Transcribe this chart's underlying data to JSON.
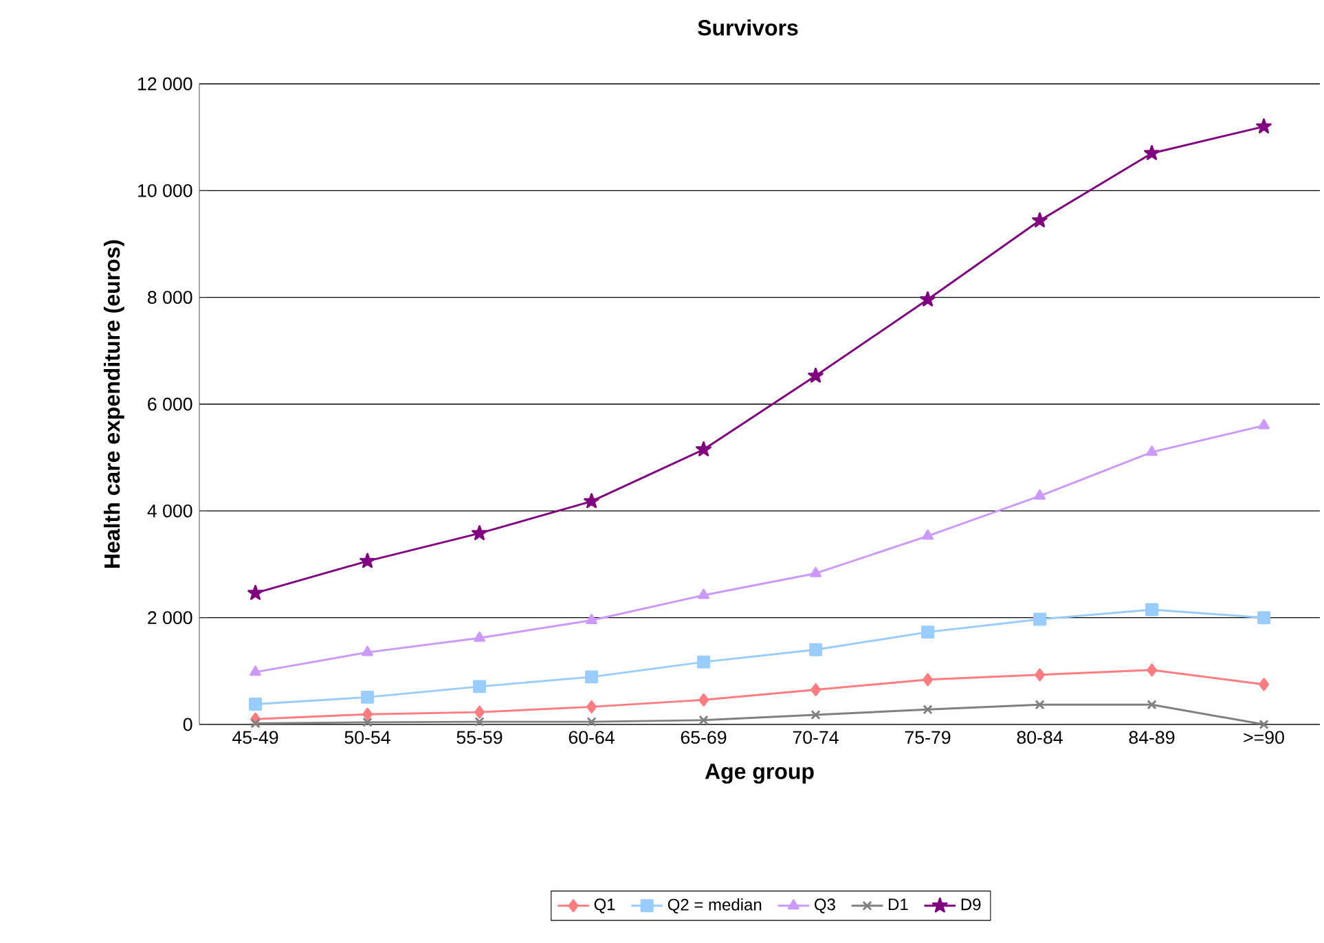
{
  "chart_data": {
    "type": "line",
    "title": "Survivors",
    "xlabel": "Age group",
    "ylabel": "Health care expenditure (euros)",
    "categories": [
      "45-49",
      "50-54",
      "55-59",
      "60-64",
      "65-69",
      "70-74",
      "75-79",
      "80-84",
      "84-89",
      ">=90"
    ],
    "series": [
      {
        "name": "Q1",
        "color": "#ff7c80",
        "marker": "diamond",
        "values": [
          100,
          190,
          230,
          330,
          460,
          650,
          840,
          930,
          1020,
          750
        ]
      },
      {
        "name": "Q2 = median",
        "color": "#99ccff",
        "marker": "square",
        "values": [
          380,
          510,
          710,
          890,
          1170,
          1400,
          1730,
          1970,
          2150,
          2000
        ]
      },
      {
        "name": "Q3",
        "color": "#cc99ff",
        "marker": "triangle",
        "values": [
          980,
          1350,
          1620,
          1950,
          2420,
          2830,
          3530,
          4280,
          5100,
          5600
        ]
      },
      {
        "name": "D1",
        "color": "#808080",
        "marker": "cross",
        "values": [
          20,
          40,
          50,
          50,
          80,
          180,
          280,
          370,
          370,
          0
        ]
      },
      {
        "name": "D9",
        "color": "#800080",
        "marker": "star",
        "values": [
          2460,
          3060,
          3580,
          4180,
          5150,
          6530,
          7960,
          9440,
          10700,
          11200
        ]
      }
    ],
    "ylim": [
      0,
      12000
    ],
    "yticks": [
      0,
      {
        "value": 2000,
        "label": "2 000"
      },
      {
        "value": 4000,
        "label": "4 000"
      },
      {
        "value": 6000,
        "label": "6 000"
      },
      {
        "value": 8000,
        "label": "8 000"
      },
      {
        "value": 10000,
        "label": "10 000"
      },
      {
        "value": 12000,
        "label": "12 000"
      }
    ],
    "grid": "y",
    "legend": "bottom",
    "line_style": "solid"
  }
}
